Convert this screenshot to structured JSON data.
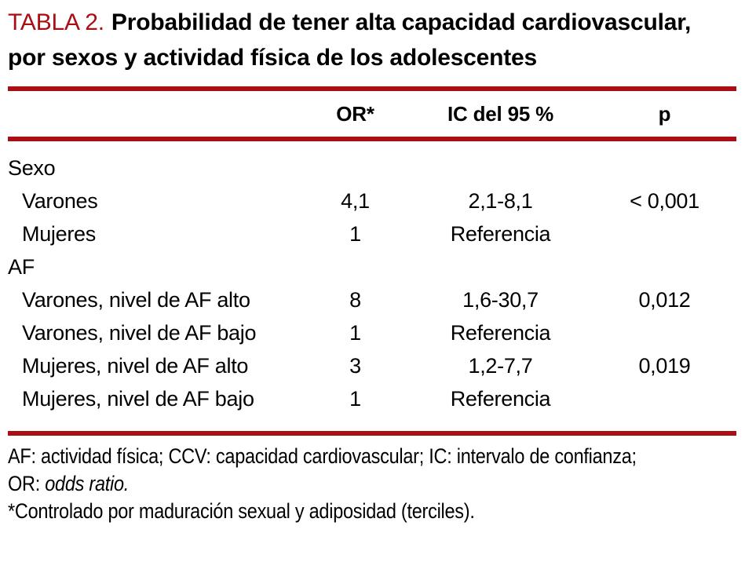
{
  "title": {
    "label": "TABLA 2.",
    "text": "Probabilidad de tener alta capacidad cardiovascular, por sexos y actividad física de los adolescentes"
  },
  "table": {
    "columns": {
      "or": "OR*",
      "ic": "IC del 95 %",
      "p": "p"
    },
    "rows": [
      {
        "label": "Sexo",
        "or": "",
        "ic": "",
        "p": ""
      },
      {
        "label": "Varones",
        "or": "4,1",
        "ic": "2,1-8,1",
        "p": "< 0,001"
      },
      {
        "label": "Mujeres",
        "or": "1",
        "ic": "Referencia",
        "p": ""
      },
      {
        "label": "AF",
        "or": "",
        "ic": "",
        "p": ""
      },
      {
        "label": "Varones, nivel de AF alto",
        "or": "8",
        "ic": "1,6-30,7",
        "p": "0,012"
      },
      {
        "label": "Varones, nivel de AF bajo",
        "or": "1",
        "ic": "Referencia",
        "p": ""
      },
      {
        "label": "Mujeres, nivel de AF alto",
        "or": "3",
        "ic": "1,2-7,7",
        "p": "0,019"
      },
      {
        "label": "Mujeres, nivel de AF bajo",
        "or": "1",
        "ic": "Referencia",
        "p": ""
      }
    ]
  },
  "footnotes": {
    "line1": "AF: actividad física; CCV: capacidad cardiovascular; IC: intervalo de confianza;",
    "line2_prefix": "OR: ",
    "line2_italic": "odds ratio.",
    "line3": "*Controlado por maduración sexual y adiposidad (terciles)."
  },
  "colors": {
    "accent_red": "#A90E13",
    "text": "#000000",
    "background": "#FFFFFF"
  }
}
